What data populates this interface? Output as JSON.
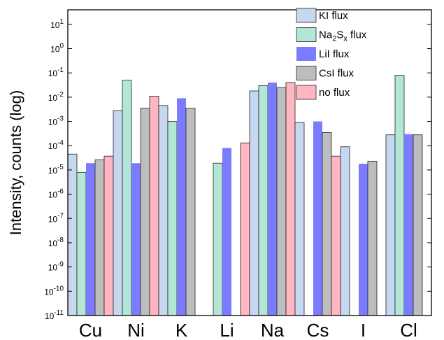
{
  "chart_data": {
    "type": "bar",
    "scale": "log",
    "ylabel": "Intensity, counts (log)",
    "xlabel": "",
    "ylim_exp": [
      -11,
      1.6
    ],
    "y_ticks": [
      {
        "exp": -11,
        "base": "10",
        "sup": "-11"
      },
      {
        "exp": -10,
        "base": "10",
        "sup": "-10"
      },
      {
        "exp": -9,
        "base": "10",
        "sup": "-9"
      },
      {
        "exp": -8,
        "base": "10",
        "sup": "-8"
      },
      {
        "exp": -7,
        "base": "10",
        "sup": "-7"
      },
      {
        "exp": -6,
        "base": "10",
        "sup": "-6"
      },
      {
        "exp": -5,
        "base": "10",
        "sup": "-5"
      },
      {
        "exp": -4,
        "base": "10",
        "sup": "-4"
      },
      {
        "exp": -3,
        "base": "10",
        "sup": "-3"
      },
      {
        "exp": -2,
        "base": "10",
        "sup": "-2"
      },
      {
        "exp": -1,
        "base": "10",
        "sup": "-1"
      },
      {
        "exp": 0,
        "base": "10",
        "sup": "0"
      },
      {
        "exp": 1,
        "base": "10",
        "sup": "1"
      }
    ],
    "categories": [
      "Cu",
      "Ni",
      "K",
      "Li",
      "Na",
      "Cs",
      "I",
      "Cl"
    ],
    "series": [
      {
        "name": "KI flux",
        "color": "#c5d8ef",
        "values": [
          4.5e-05,
          0.0028,
          0.0045,
          null,
          0.018,
          0.0009,
          9e-05,
          0.00028
        ]
      },
      {
        "name": "Na2Sx flux",
        "legend_parts": [
          "Na",
          "2",
          "S",
          "x",
          " flux"
        ],
        "color": "#b4e6d8",
        "values": [
          8e-06,
          0.05,
          0.001,
          1.9e-05,
          0.03,
          null,
          null,
          0.08
        ]
      },
      {
        "name": "LiI flux",
        "color": "#7b7bff",
        "values": [
          1.9e-05,
          1.9e-05,
          0.009,
          8e-05,
          0.04,
          0.001,
          1.8e-05,
          0.0003
        ]
      },
      {
        "name": "CsI flux",
        "color": "#bdbdbd",
        "values": [
          2.6e-05,
          0.0035,
          0.0035,
          null,
          0.025,
          0.00035,
          2.3e-05,
          0.00028
        ]
      },
      {
        "name": "no flux",
        "color": "#ffb6c1",
        "values": [
          3.7e-05,
          0.011,
          null,
          0.00013,
          0.04,
          3.7e-05,
          null,
          null
        ]
      }
    ],
    "legend_position": "top-right",
    "grid": false
  }
}
